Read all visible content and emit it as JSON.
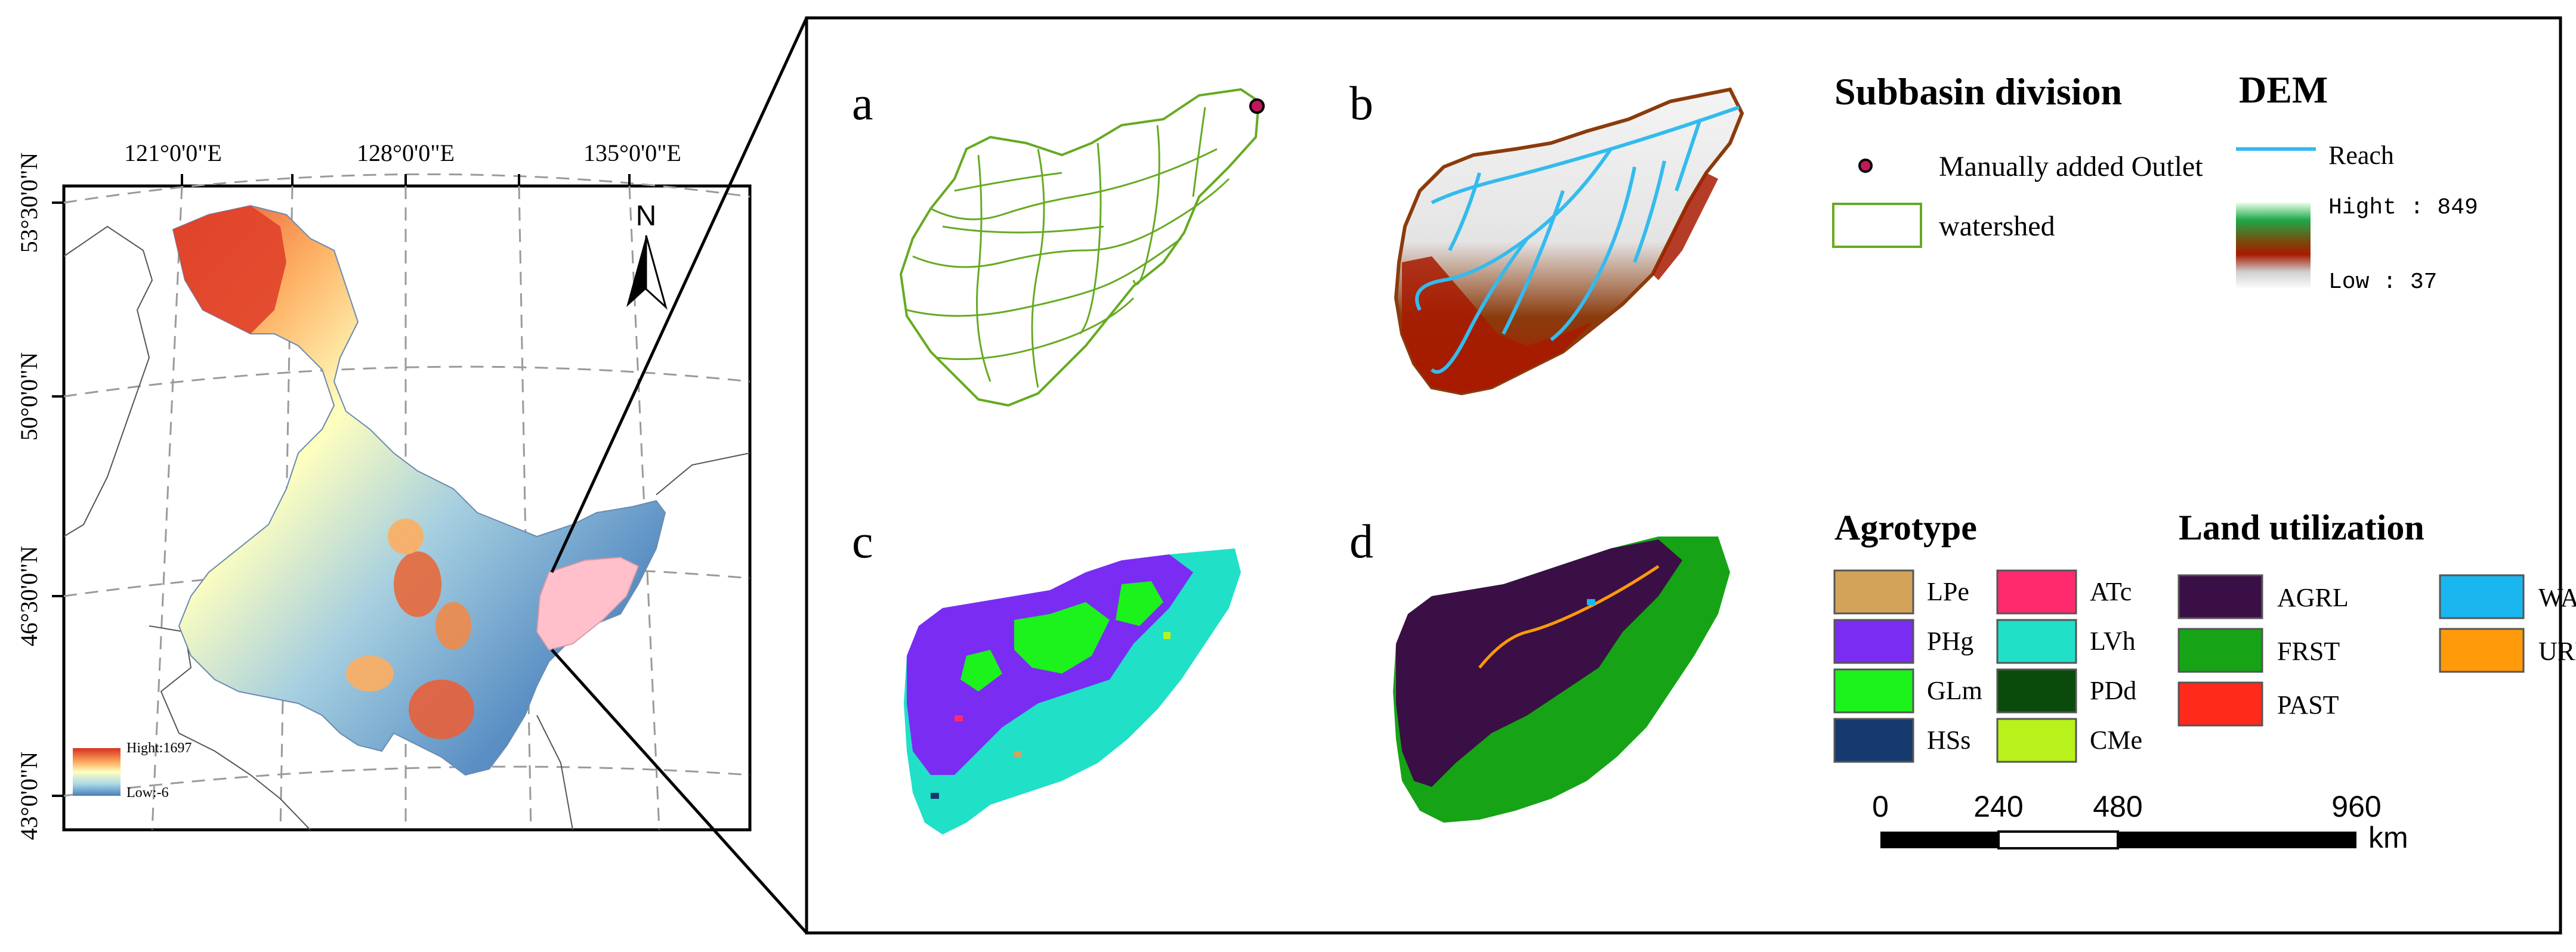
{
  "left_map": {
    "lon_labels": [
      "121°0'0\"E",
      "128°0'0\"E",
      "135°0'0\"E"
    ],
    "lat_labels": [
      "53°30'0\"N",
      "50°0'0\"N",
      "46°30'0\"N",
      "43°0'0\"N"
    ],
    "north_arrow": "N",
    "elevation_legend": {
      "high": "Hight:1697",
      "low": "Low:-6",
      "colors": [
        "#d7301f",
        "#fdae61",
        "#ffffbf",
        "#abd9e9",
        "#4a7fb8"
      ]
    }
  },
  "panels": {
    "a": {
      "label": "a"
    },
    "b": {
      "label": "b"
    },
    "c": {
      "label": "c"
    },
    "d": {
      "label": "d"
    }
  },
  "subbasin_legend": {
    "title": "Subbasin division",
    "items": [
      {
        "label": "Manually added Outlet",
        "symbol": "point",
        "color": "#c2185b"
      },
      {
        "label": "watershed",
        "symbol": "polygon-outline",
        "color": "#66aa22"
      }
    ]
  },
  "dem_legend": {
    "title": "DEM",
    "reach_label": "Reach",
    "reach_color": "#33bbee",
    "high": "Hight : 849",
    "low": "Low : 37",
    "colors": [
      "#e8ffe8",
      "#1fa84a",
      "#7a4a0c",
      "#a81a00",
      "#cfcfcf",
      "#ffffff"
    ]
  },
  "agrotype_legend": {
    "title": "Agrotype",
    "items": [
      {
        "label": "LPe",
        "color": "#d4a35a"
      },
      {
        "label": "ATc",
        "color": "#ff2a6d"
      },
      {
        "label": "PHg",
        "color": "#7b2cf2"
      },
      {
        "label": "LVh",
        "color": "#20e0c8"
      },
      {
        "label": "GLm",
        "color": "#1cf21c"
      },
      {
        "label": "PDd",
        "color": "#0a4a0a"
      },
      {
        "label": "HSs",
        "color": "#143a6e"
      },
      {
        "label": "CMe",
        "color": "#b8f21a"
      }
    ]
  },
  "land_legend": {
    "title": "Land utilization",
    "items": [
      {
        "label": "AGRL",
        "color": "#3a0f45"
      },
      {
        "label": "WATR",
        "color": "#1ab6f0"
      },
      {
        "label": "FRST",
        "color": "#16a316"
      },
      {
        "label": "URBN",
        "color": "#ff9a0a"
      },
      {
        "label": "PAST",
        "color": "#ff2a1a"
      }
    ]
  },
  "scale_bar": {
    "ticks": [
      "0",
      "240",
      "480",
      "960"
    ],
    "unit": "km"
  }
}
